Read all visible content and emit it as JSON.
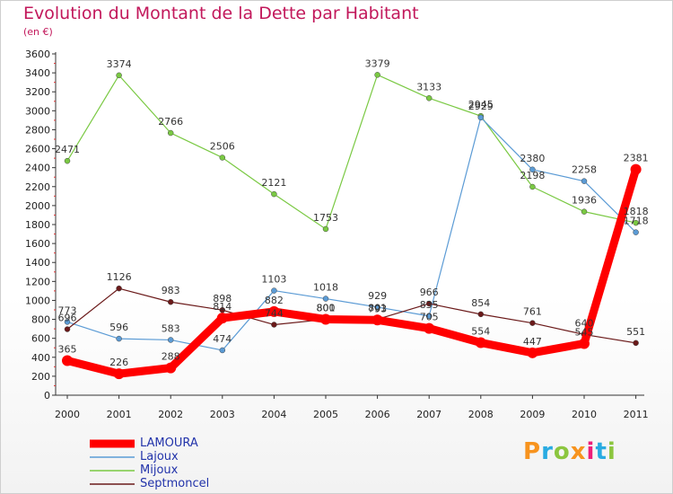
{
  "chart_data": {
    "type": "line",
    "title": "Evolution du Montant de la Dette par Habitant",
    "subtitle": "(en €)",
    "x": [
      "2000",
      "2001",
      "2002",
      "2003",
      "2004",
      "2005",
      "2006",
      "2007",
      "2008",
      "2009",
      "2010",
      "2011"
    ],
    "ylim": [
      0,
      3600
    ],
    "yticks": [
      0,
      200,
      400,
      600,
      800,
      1000,
      1200,
      1400,
      1600,
      1800,
      2000,
      2200,
      2400,
      2600,
      2800,
      3000,
      3200,
      3400,
      3600
    ],
    "grid": false,
    "legend_position": "bottom-left",
    "series": [
      {
        "name": "LAMOURA",
        "color": "#ff0000",
        "values": [
          365,
          226,
          288,
          814,
          882,
          801,
          793,
          705,
          554,
          447,
          545,
          2381
        ]
      },
      {
        "name": "Lajoux",
        "color": "#5b9bd5",
        "values": [
          773,
          596,
          583,
          474,
          1103,
          1018,
          929,
          835,
          2929,
          2380,
          2258,
          1718
        ]
      },
      {
        "name": "Mijoux",
        "color": "#7ac943",
        "values": [
          2471,
          3374,
          2766,
          2506,
          2121,
          1753,
          3379,
          3133,
          2945,
          2198,
          1936,
          1818
        ]
      },
      {
        "name": "Septmoncel",
        "color": "#6b1a1a",
        "values": [
          696,
          1126,
          983,
          898,
          744,
          800,
          801,
          966,
          854,
          761,
          640,
          551
        ]
      }
    ]
  },
  "logo": {
    "letters": [
      "P",
      "r",
      "o",
      "x",
      "i",
      "t",
      "i"
    ],
    "colors": [
      "#f7931e",
      "#29abe2",
      "#8cc63f",
      "#f7931e",
      "#ed1e79",
      "#29abe2",
      "#8cc63f"
    ]
  }
}
